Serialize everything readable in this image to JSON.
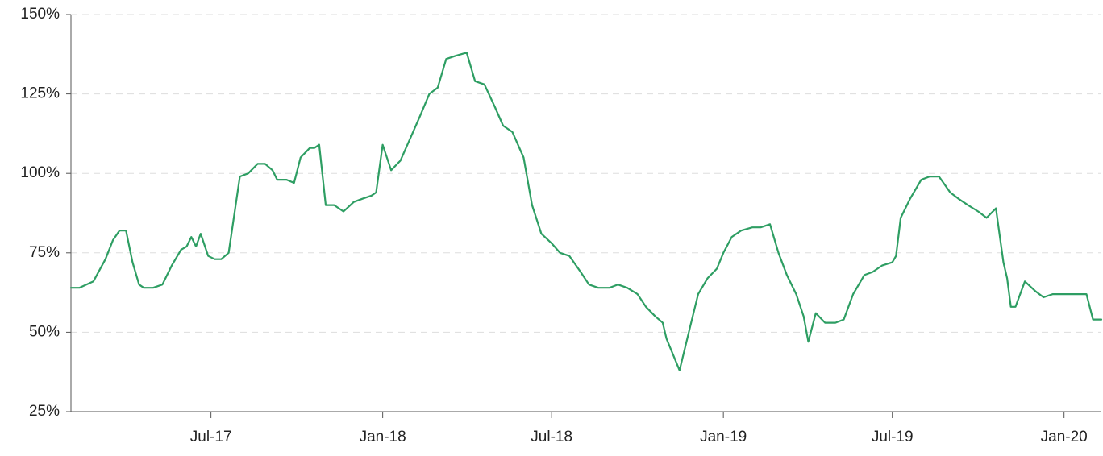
{
  "chart_data": {
    "type": "line",
    "title": "",
    "xlabel": "",
    "ylabel": "",
    "ylim": [
      25,
      150
    ],
    "xlim": [
      "2017-02-01",
      "2020-02-10"
    ],
    "grid": "horizontal-dashed",
    "legend": "none",
    "y_ticks": [
      {
        "value": 25,
        "label": "25%"
      },
      {
        "value": 50,
        "label": "50%"
      },
      {
        "value": 75,
        "label": "75%"
      },
      {
        "value": 100,
        "label": "100%"
      },
      {
        "value": 125,
        "label": "125%"
      },
      {
        "value": 150,
        "label": "150%"
      }
    ],
    "x_ticks": [
      {
        "value": "2017-07-01",
        "label": "Jul-17"
      },
      {
        "value": "2018-01-01",
        "label": "Jan-18"
      },
      {
        "value": "2018-07-01",
        "label": "Jul-18"
      },
      {
        "value": "2019-01-01",
        "label": "Jan-19"
      },
      {
        "value": "2019-07-01",
        "label": "Jul-19"
      },
      {
        "value": "2020-01-01",
        "label": "Jan-20"
      }
    ],
    "series": [
      {
        "color": "#2e9e63",
        "x": [
          "2017-02-01",
          "2017-02-10",
          "2017-02-25",
          "2017-03-10",
          "2017-03-18",
          "2017-03-25",
          "2017-04-01",
          "2017-04-08",
          "2017-04-15",
          "2017-04-20",
          "2017-04-30",
          "2017-05-10",
          "2017-05-20",
          "2017-05-30",
          "2017-06-05",
          "2017-06-10",
          "2017-06-15",
          "2017-06-20",
          "2017-06-28",
          "2017-07-05",
          "2017-07-12",
          "2017-07-20",
          "2017-08-01",
          "2017-08-10",
          "2017-08-20",
          "2017-08-28",
          "2017-09-05",
          "2017-09-10",
          "2017-09-20",
          "2017-09-28",
          "2017-10-05",
          "2017-10-15",
          "2017-10-20",
          "2017-10-25",
          "2017-11-01",
          "2017-11-10",
          "2017-11-20",
          "2017-12-01",
          "2017-12-10",
          "2017-12-20",
          "2017-12-25",
          "2018-01-01",
          "2018-01-10",
          "2018-01-20",
          "2018-02-01",
          "2018-02-10",
          "2018-02-20",
          "2018-03-01",
          "2018-03-10",
          "2018-03-20",
          "2018-04-01",
          "2018-04-10",
          "2018-04-20",
          "2018-05-01",
          "2018-05-10",
          "2018-05-20",
          "2018-06-01",
          "2018-06-10",
          "2018-06-20",
          "2018-07-01",
          "2018-07-10",
          "2018-07-20",
          "2018-08-01",
          "2018-08-10",
          "2018-08-20",
          "2018-09-01",
          "2018-09-10",
          "2018-09-20",
          "2018-10-01",
          "2018-10-10",
          "2018-10-20",
          "2018-10-28",
          "2018-11-01",
          "2018-11-08",
          "2018-11-15",
          "2018-11-25",
          "2018-12-05",
          "2018-12-15",
          "2018-12-25",
          "2019-01-01",
          "2019-01-10",
          "2019-01-20",
          "2019-02-01",
          "2019-02-10",
          "2019-02-20",
          "2019-03-01",
          "2019-03-10",
          "2019-03-20",
          "2019-03-28",
          "2019-04-02",
          "2019-04-10",
          "2019-04-20",
          "2019-05-01",
          "2019-05-10",
          "2019-05-20",
          "2019-06-01",
          "2019-06-10",
          "2019-06-20",
          "2019-07-01",
          "2019-07-05",
          "2019-07-10",
          "2019-07-20",
          "2019-08-01",
          "2019-08-10",
          "2019-08-20",
          "2019-09-01",
          "2019-09-10",
          "2019-09-20",
          "2019-10-01",
          "2019-10-10",
          "2019-10-20",
          "2019-10-28",
          "2019-11-01",
          "2019-11-05",
          "2019-11-10",
          "2019-11-20",
          "2019-12-01",
          "2019-12-10",
          "2019-12-20",
          "2020-01-01",
          "2020-01-10",
          "2020-01-20",
          "2020-01-25",
          "2020-02-01",
          "2020-02-10"
        ],
        "values": [
          64,
          64,
          66,
          73,
          79,
          82,
          82,
          72,
          65,
          64,
          64,
          65,
          71,
          76,
          77,
          80,
          77,
          81,
          74,
          73,
          73,
          75,
          99,
          100,
          103,
          103,
          101,
          98,
          98,
          97,
          105,
          108,
          108,
          109,
          90,
          90,
          88,
          91,
          92,
          93,
          94,
          109,
          101,
          104,
          112,
          118,
          125,
          127,
          136,
          137,
          138,
          129,
          128,
          121,
          115,
          113,
          105,
          90,
          81,
          78,
          75,
          74,
          69,
          65,
          64,
          64,
          65,
          64,
          62,
          58,
          55,
          53,
          48,
          43,
          38,
          50,
          62,
          67,
          70,
          75,
          80,
          82,
          83,
          83,
          84,
          75,
          68,
          62,
          55,
          47,
          56,
          53,
          53,
          54,
          62,
          68,
          69,
          71,
          72,
          74,
          86,
          92,
          98,
          99,
          99,
          94,
          92,
          90,
          88,
          86,
          89,
          72,
          67,
          58,
          58,
          66,
          63,
          61,
          62,
          62,
          62,
          62,
          62,
          54,
          54
        ]
      }
    ]
  }
}
